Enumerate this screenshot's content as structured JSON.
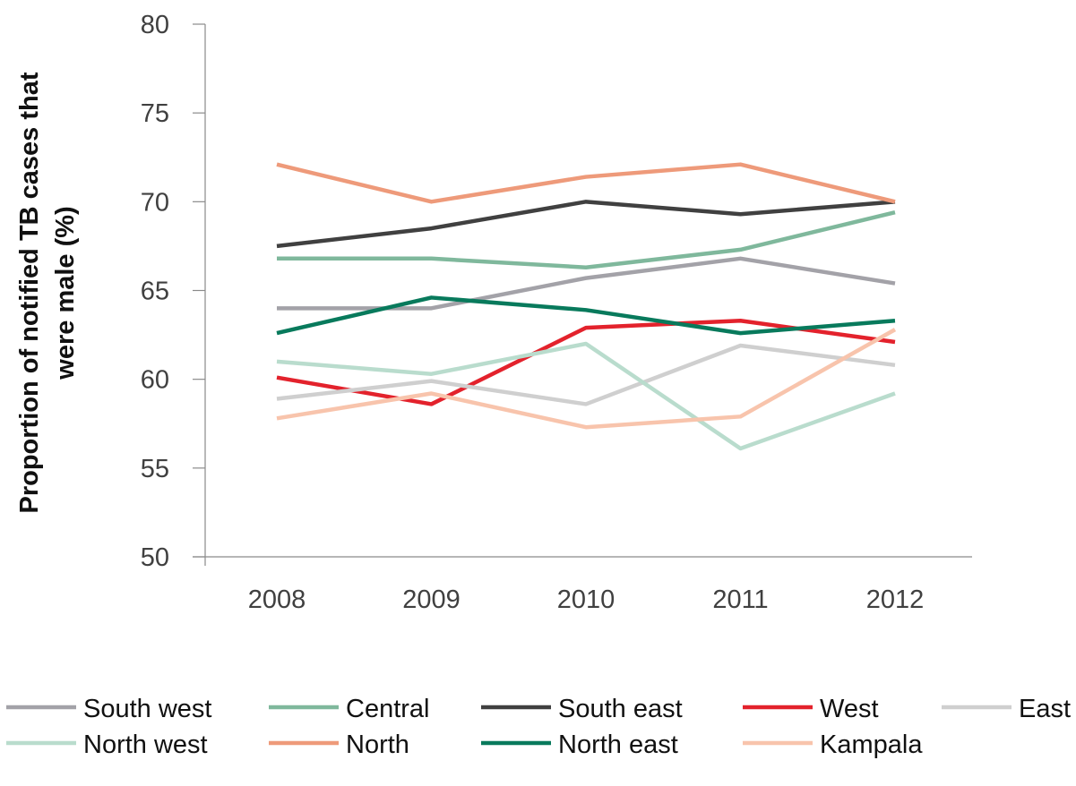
{
  "chart_data": {
    "type": "line",
    "categories": [
      "2008",
      "2009",
      "2010",
      "2011",
      "2012"
    ],
    "ylabel_lines": [
      "Proportion of notified TB cases that",
      "were male (%)"
    ],
    "xlabel": "",
    "title": "",
    "ylim": [
      50,
      80
    ],
    "yticks": [
      50,
      55,
      60,
      65,
      70,
      75,
      80
    ],
    "grid": false,
    "legend_position": "bottom",
    "series": [
      {
        "name": "South west",
        "color": "#a3a2a8",
        "values": [
          64.0,
          64.0,
          65.7,
          66.8,
          65.4
        ]
      },
      {
        "name": "Central",
        "color": "#7fb89c",
        "values": [
          66.8,
          66.8,
          66.3,
          67.3,
          69.4
        ]
      },
      {
        "name": "South east",
        "color": "#404040",
        "values": [
          67.5,
          68.5,
          70.0,
          69.3,
          70.0
        ]
      },
      {
        "name": "West",
        "color": "#e3222c",
        "values": [
          60.1,
          58.6,
          62.9,
          63.3,
          62.1
        ]
      },
      {
        "name": "East",
        "color": "#cfcfcf",
        "values": [
          58.9,
          59.9,
          58.6,
          61.9,
          60.8
        ]
      },
      {
        "name": "North west",
        "color": "#b9dccd",
        "values": [
          61.0,
          60.3,
          62.0,
          56.1,
          59.2
        ]
      },
      {
        "name": "North",
        "color": "#ee9a7a",
        "values": [
          72.1,
          70.0,
          71.4,
          72.1,
          70.0
        ]
      },
      {
        "name": "North east",
        "color": "#087a5c",
        "values": [
          62.6,
          64.6,
          63.9,
          62.6,
          63.3
        ]
      },
      {
        "name": "Kampala",
        "color": "#f8c4ac",
        "values": [
          57.8,
          59.2,
          57.3,
          57.9,
          62.8
        ]
      }
    ]
  }
}
